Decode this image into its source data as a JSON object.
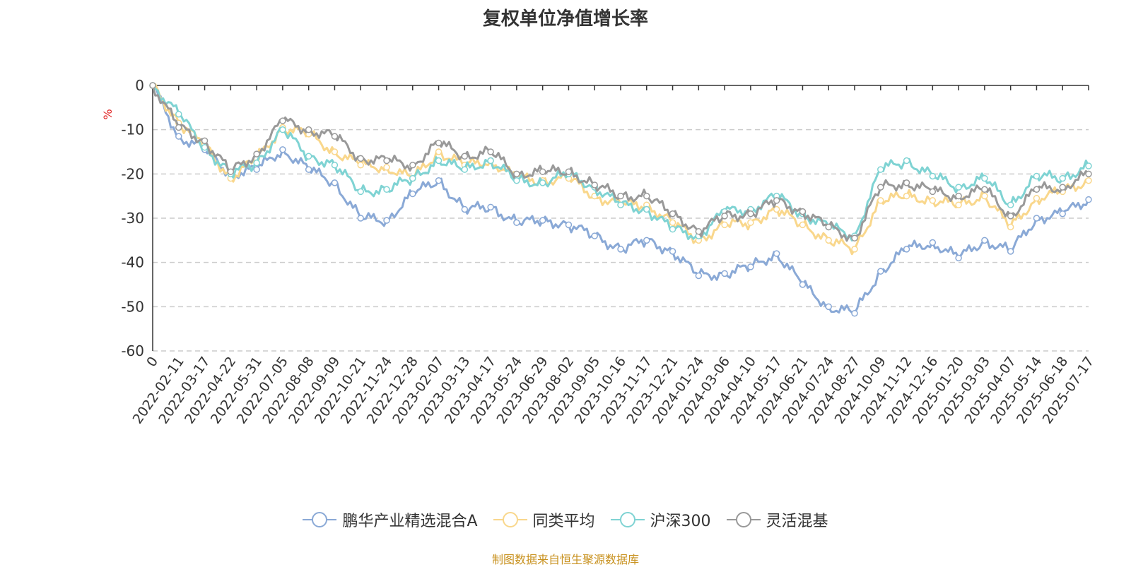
{
  "chart_data": {
    "type": "line",
    "title": "复权单位净值增长率",
    "ylabel": "%",
    "ylim": [
      -60,
      0
    ],
    "yticks": [
      "0",
      "-10",
      "-20",
      "-30",
      "-40",
      "-50",
      "-60"
    ],
    "grid": true,
    "legend_position": "bottom",
    "x_labels": [
      "0",
      "2022-02-11",
      "2022-03-17",
      "2022-04-22",
      "2022-05-31",
      "2022-07-05",
      "2022-08-08",
      "2022-09-09",
      "2022-10-21",
      "2022-11-24",
      "2022-12-28",
      "2023-02-07",
      "2023-03-13",
      "2023-04-17",
      "2023-05-24",
      "2023-06-29",
      "2023-08-02",
      "2023-09-05",
      "2023-10-16",
      "2023-11-17",
      "2023-12-21",
      "2024-01-24",
      "2024-03-06",
      "2024-04-10",
      "2024-05-17",
      "2024-06-21",
      "2024-07-24",
      "2024-08-27",
      "2024-10-09",
      "2024-11-12",
      "2024-12-16",
      "2025-01-20",
      "2025-03-03",
      "2025-04-07",
      "2025-05-14",
      "2025-06-18",
      "2025-07-17"
    ],
    "series": [
      {
        "name": "鹏华产业精选混合A",
        "color": "#8aa9d6",
        "values": [
          0,
          -11.5,
          -14.5,
          -20,
          -19,
          -14.5,
          -19,
          -22,
          -30,
          -30.5,
          -24.5,
          -21.5,
          -28,
          -27.5,
          -31,
          -30.5,
          -31.5,
          -34,
          -37,
          -35,
          -37.5,
          -43,
          -42.5,
          -41,
          -38,
          -45,
          -50,
          -51.5,
          -42,
          -37,
          -35.5,
          -39,
          -35,
          -37.5,
          -30,
          -29,
          -25.8
        ]
      },
      {
        "name": "同类平均",
        "color": "#f9d78c",
        "values": [
          0,
          -8.5,
          -13.5,
          -21,
          -16.5,
          -9.5,
          -11,
          -15,
          -18,
          -18.5,
          -21,
          -15,
          -18,
          -17,
          -21,
          -21.5,
          -21,
          -25,
          -27,
          -27,
          -31,
          -35,
          -31.5,
          -31,
          -28,
          -31.5,
          -35,
          -37,
          -26,
          -25,
          -26,
          -27,
          -25,
          -32,
          -25.5,
          -24,
          -21.5
        ]
      },
      {
        "name": "沪深300",
        "color": "#7fd3d3",
        "values": [
          0,
          -6.5,
          -14,
          -20,
          -17.5,
          -10,
          -16,
          -18,
          -24,
          -23.5,
          -21,
          -17,
          -19,
          -17,
          -21.5,
          -22,
          -20,
          -23,
          -27,
          -28,
          -32.5,
          -34,
          -28.5,
          -28,
          -25,
          -29,
          -32,
          -34,
          -19,
          -17,
          -20.5,
          -23,
          -21,
          -27,
          -20.5,
          -21,
          -18.2
        ]
      },
      {
        "name": "灵活混基",
        "color": "#999999",
        "values": [
          0,
          -9.5,
          -12.5,
          -19.5,
          -15.5,
          -8,
          -10,
          -11.5,
          -16.5,
          -17,
          -18,
          -13,
          -16,
          -15,
          -20,
          -19.5,
          -19.5,
          -22.5,
          -25,
          -25,
          -29,
          -33,
          -29.5,
          -29,
          -26,
          -28.5,
          -32,
          -34.5,
          -23,
          -22,
          -24,
          -25,
          -23.5,
          -29.5,
          -23.5,
          -23,
          -20
        ]
      }
    ]
  },
  "footer": {
    "source": "制图数据来自恒生聚源数据库"
  }
}
